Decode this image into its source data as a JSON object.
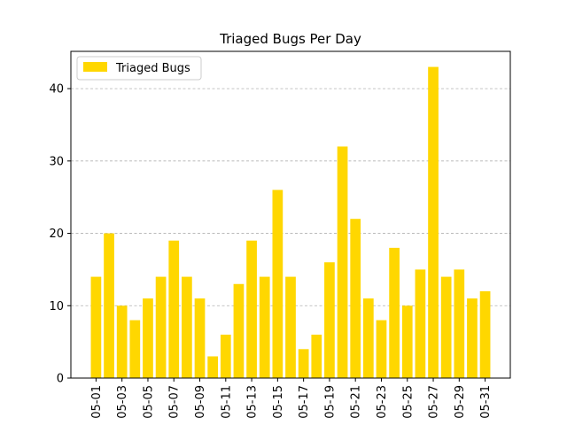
{
  "chart_data": {
    "type": "bar",
    "title": "Triaged Bugs Per Day",
    "xlabel": "",
    "ylabel": "",
    "categories": [
      "05-01",
      "05-02",
      "05-03",
      "05-04",
      "05-05",
      "05-06",
      "05-07",
      "05-08",
      "05-09",
      "05-10",
      "05-11",
      "05-12",
      "05-13",
      "05-14",
      "05-15",
      "05-16",
      "05-17",
      "05-18",
      "05-19",
      "05-20",
      "05-21",
      "05-22",
      "05-23",
      "05-24",
      "05-25",
      "05-26",
      "05-27",
      "05-28",
      "05-29",
      "05-30",
      "05-31"
    ],
    "x_tick_labels": [
      "05-01",
      "05-03",
      "05-05",
      "05-07",
      "05-09",
      "05-11",
      "05-13",
      "05-15",
      "05-17",
      "05-19",
      "05-21",
      "05-23",
      "05-25",
      "05-27",
      "05-29",
      "05-31"
    ],
    "series": [
      {
        "name": "Triaged Bugs",
        "color": "#FFD700",
        "values": [
          14,
          20,
          10,
          8,
          11,
          14,
          19,
          14,
          11,
          3,
          6,
          13,
          19,
          14,
          26,
          14,
          4,
          6,
          16,
          32,
          22,
          11,
          8,
          18,
          10,
          15,
          43,
          14,
          15,
          11,
          12
        ]
      }
    ],
    "ylim": [
      0,
      45.15
    ],
    "y_ticks": [
      0,
      10,
      20,
      30,
      40
    ],
    "grid": "y-dashed",
    "legend": "upper-left"
  }
}
